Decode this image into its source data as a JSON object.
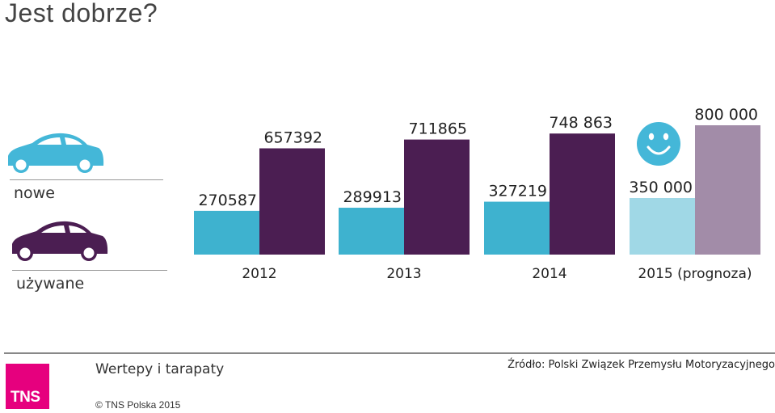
{
  "title": "Jest dobrze?",
  "legend": {
    "new_label": "nowe",
    "used_label": "używane"
  },
  "colors": {
    "new": "#3eb2cf",
    "used": "#4b1e52",
    "new_forecast": "#a0d8e6",
    "used_forecast": "#a28ca8",
    "smiley": "#44b7d8"
  },
  "chart_data": {
    "type": "bar",
    "categories": [
      "2012",
      "2013",
      "2014",
      "2015 (prognoza)"
    ],
    "series": [
      {
        "name": "nowe",
        "values": [
          270587,
          289913,
          327219,
          350000
        ]
      },
      {
        "name": "używane",
        "values": [
          657392,
          711865,
          748863,
          800000
        ]
      }
    ],
    "value_labels": {
      "nowe": [
        "270587",
        "289913",
        "327219",
        "350 000"
      ],
      "używane": [
        "657392",
        "711865",
        "748 863",
        "800 000"
      ]
    },
    "forecast_index": 3,
    "ylim": [
      0,
      800000
    ]
  },
  "footer": {
    "title": "Wertepy i tarapaty",
    "source": "Źródło: Polski Związek Przemysłu Motoryzacyjnego",
    "logo": "TNS",
    "copyright": "© TNS Polska 2015"
  }
}
